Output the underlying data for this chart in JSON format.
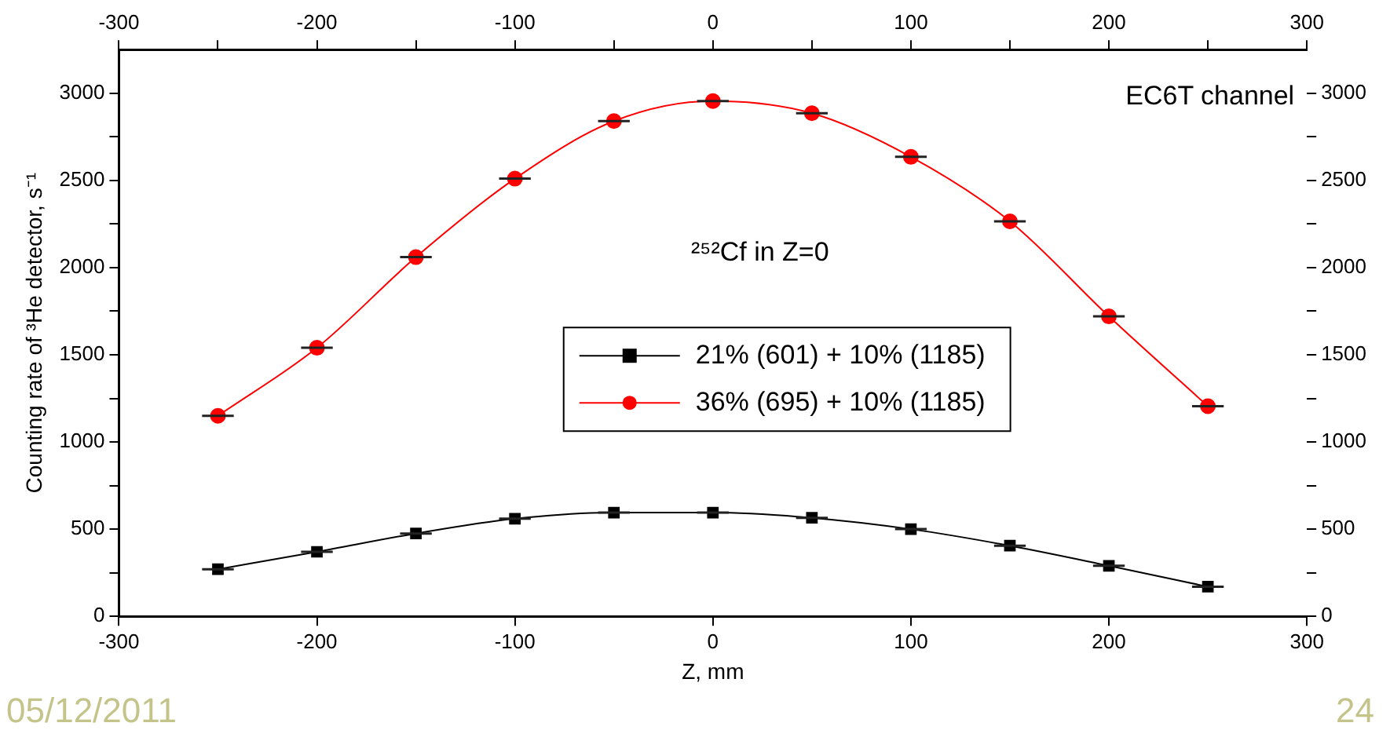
{
  "chart_data": {
    "type": "line",
    "xlabel": "Z, mm",
    "ylabel": "Counting rate of ³He detector, s⁻¹",
    "x": [
      -250,
      -200,
      -150,
      -100,
      -50,
      0,
      50,
      100,
      150,
      200,
      250
    ],
    "series": [
      {
        "name": "21% (601) + 10% (1185)",
        "color": "#000000",
        "marker": "square",
        "values": [
          270,
          370,
          475,
          560,
          595,
          595,
          565,
          500,
          405,
          290,
          170
        ],
        "xerrors": [
          8,
          8,
          8,
          8,
          8,
          8,
          8,
          8,
          8,
          8,
          8
        ]
      },
      {
        "name": "36% (695) + 10% (1185)",
        "color": "#ff0000",
        "marker": "circle",
        "values": [
          1150,
          1540,
          2060,
          2510,
          2840,
          2955,
          2885,
          2635,
          2265,
          1720,
          1205
        ],
        "xerrors": [
          8,
          8,
          8,
          8,
          8,
          8,
          8,
          8,
          8,
          8,
          8
        ]
      }
    ],
    "xlim": [
      -300,
      300
    ],
    "xticks": [
      -300,
      -200,
      -100,
      0,
      100,
      200,
      300
    ],
    "x2lim": [
      -300,
      300
    ],
    "x2ticks": [
      -300,
      {
        "value": -250,
        "label": null
      },
      -200,
      {
        "value": -150,
        "label": null
      },
      -100,
      {
        "value": -50,
        "label": null
      },
      0,
      {
        "value": 50,
        "label": null
      },
      100,
      {
        "value": 150,
        "label": null
      },
      200,
      {
        "value": 250,
        "label": null
      },
      300
    ],
    "ylim": [
      0,
      3250
    ],
    "yticks": [
      0,
      {
        "value": 250,
        "label": null
      },
      500,
      {
        "value": 750,
        "label": null
      },
      1000,
      {
        "value": 1250,
        "label": null
      },
      1500,
      {
        "value": 1750,
        "label": null
      },
      2000,
      {
        "value": 2250,
        "label": null
      },
      2500,
      {
        "value": 2750,
        "label": null
      },
      3000
    ],
    "y2lim": [
      0,
      3250
    ],
    "y2ticks": [
      0,
      {
        "value": 250,
        "label": null
      },
      500,
      {
        "value": 750,
        "label": null
      },
      1000,
      {
        "value": 1250,
        "label": null
      },
      1500,
      {
        "value": 1750,
        "label": null
      },
      2000,
      {
        "value": 2250,
        "label": null
      },
      2500,
      {
        "value": 2750,
        "label": null
      },
      3000
    ],
    "grid": false,
    "legend": "center",
    "line_style": "solid",
    "annotations": [
      "EC6T channel",
      "²⁵²Cf in Z=0",
      "05/12/2011",
      "24"
    ]
  }
}
